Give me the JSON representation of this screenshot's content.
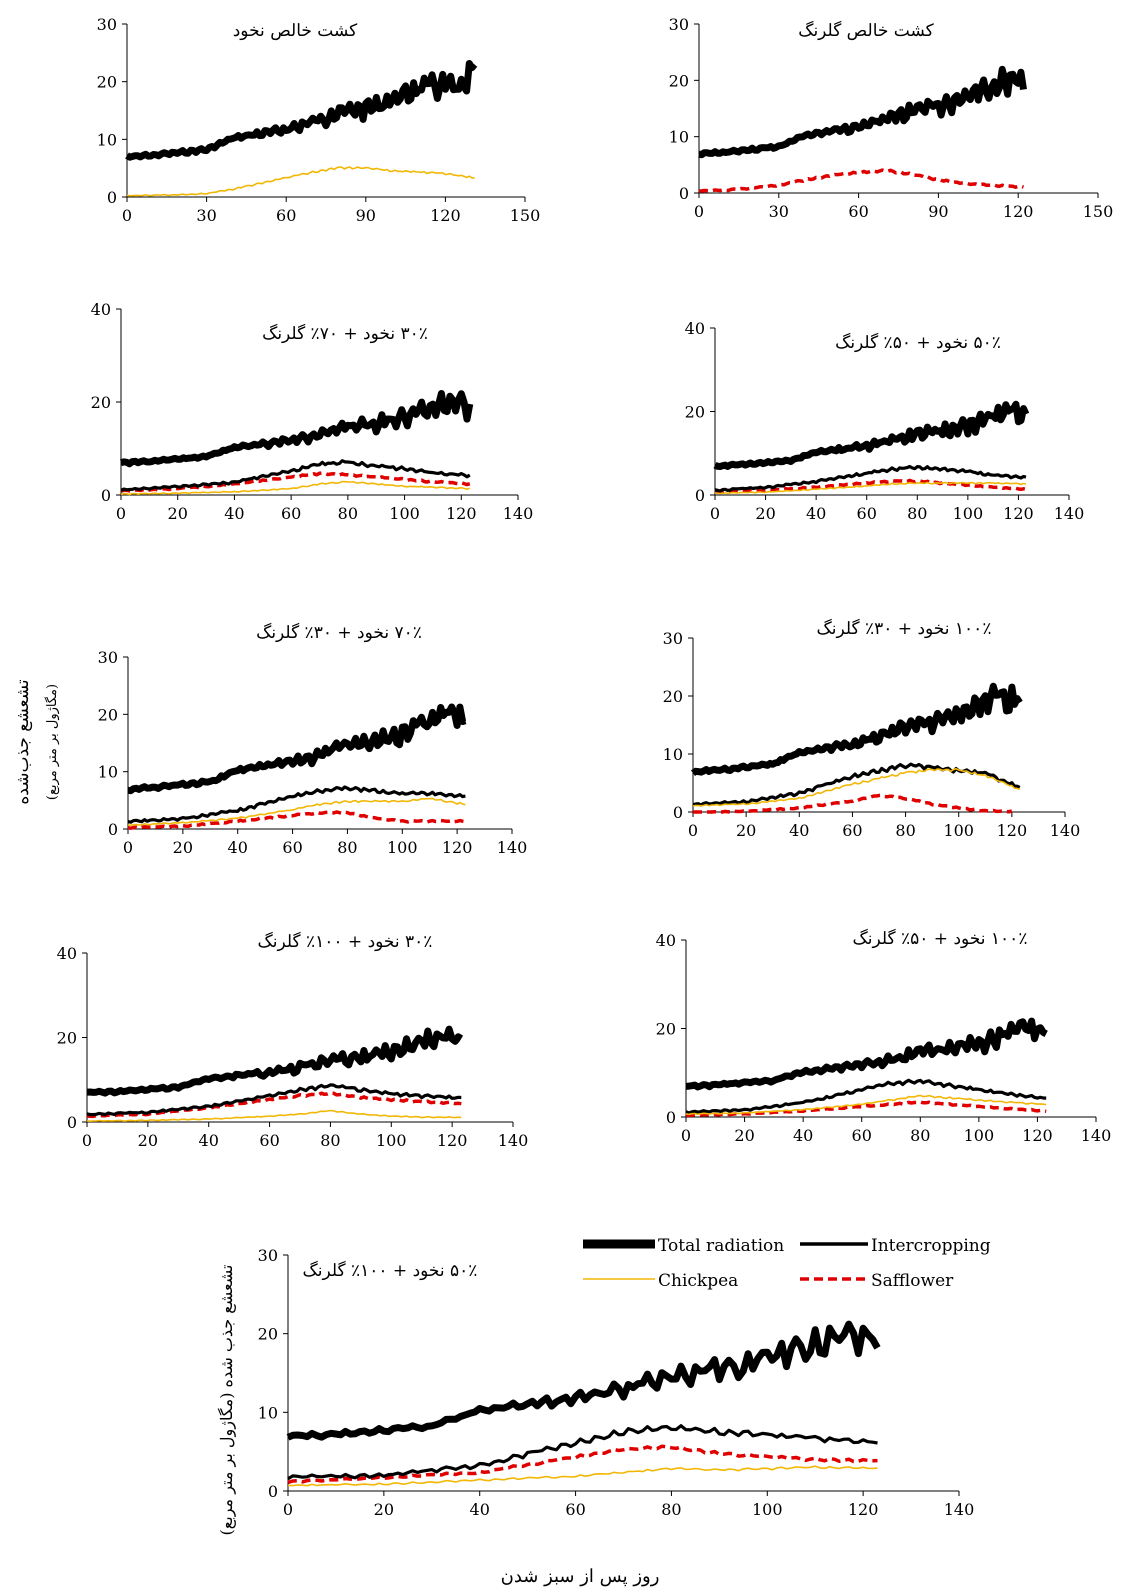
{
  "figure": {
    "y_label_main": "تشعشع جذب‌شده",
    "y_label_sub": "(مگاژول بر متر مربع)",
    "y_label_bottom": "تشعشع جذب شده (مگاژول بر متر مربع)",
    "x_label": "روز پس از سبز شدن"
  },
  "legend": {
    "total": "Total radiation",
    "inter": "Intercropping",
    "chick": "Chickpea",
    "saff": "Safflower"
  },
  "colors": {
    "total": "#000000",
    "inter": "#000000",
    "chick": "#f2b705",
    "saff": "#e00000"
  },
  "chart_data": [
    {
      "type": "line",
      "title": "کشت خالص نخود",
      "xlim": [
        0,
        150
      ],
      "ylim": [
        0,
        30
      ],
      "xticks": [
        0,
        30,
        60,
        90,
        120,
        150
      ],
      "yticks": [
        0,
        10,
        20,
        30
      ],
      "x_end": 131,
      "series": [
        {
          "name": "Total radiation",
          "x": [
            0,
            10,
            20,
            30,
            40,
            50,
            60,
            70,
            80,
            90,
            100,
            110,
            120,
            125,
            131
          ],
          "y": [
            7.2,
            7.5,
            8.0,
            8.5,
            10.5,
            11.5,
            12.5,
            14.0,
            16.0,
            17.0,
            18.5,
            21.0,
            22.0,
            20.5,
            25.0
          ]
        },
        {
          "name": "Chickpea",
          "x": [
            0,
            20,
            30,
            40,
            50,
            60,
            70,
            80,
            90,
            100,
            110,
            120,
            131
          ],
          "y": [
            0.3,
            0.5,
            0.7,
            1.5,
            2.5,
            3.5,
            4.5,
            5.3,
            5.2,
            4.7,
            4.5,
            4.2,
            3.5
          ]
        }
      ]
    },
    {
      "type": "line",
      "title": "کشت خالص گلرنگ",
      "xlim": [
        0,
        150
      ],
      "ylim": [
        0,
        30
      ],
      "xticks": [
        0,
        30,
        60,
        90,
        120,
        150
      ],
      "yticks": [
        0,
        10,
        20,
        30
      ],
      "x_end": 122,
      "series": [
        {
          "name": "Total radiation",
          "x": [
            0,
            10,
            20,
            30,
            40,
            50,
            60,
            70,
            80,
            90,
            100,
            110,
            115,
            122
          ],
          "y": [
            7.2,
            7.5,
            8.0,
            8.5,
            10.5,
            11.5,
            12.5,
            14.0,
            16.0,
            17.0,
            18.5,
            21.0,
            22.5,
            21.5
          ]
        },
        {
          "name": "Safflower",
          "x": [
            0,
            10,
            20,
            30,
            40,
            50,
            60,
            70,
            80,
            90,
            100,
            110,
            122
          ],
          "y": [
            0.5,
            0.6,
            1.0,
            1.5,
            2.5,
            3.3,
            3.8,
            4.2,
            3.5,
            2.5,
            1.8,
            1.5,
            1.2
          ]
        }
      ]
    },
    {
      "type": "line",
      "title": "۳۰٪ نخود + ۷۰٪ گلرنگ",
      "xlim": [
        0,
        140
      ],
      "ylim": [
        0,
        40
      ],
      "xticks": [
        0,
        20,
        40,
        60,
        80,
        100,
        120,
        140
      ],
      "yticks": [
        0,
        20,
        40
      ],
      "x_end": 123,
      "series": [
        {
          "name": "Total radiation",
          "x": [
            0,
            10,
            20,
            30,
            40,
            50,
            60,
            70,
            80,
            90,
            100,
            110,
            115,
            123
          ],
          "y": [
            7.2,
            7.5,
            8.0,
            8.5,
            10.5,
            11.5,
            12.5,
            14.0,
            16.0,
            17.0,
            18.5,
            21.0,
            22.5,
            21.5
          ]
        },
        {
          "name": "Intercropping",
          "x": [
            0,
            20,
            40,
            60,
            70,
            80,
            90,
            100,
            110,
            123
          ],
          "y": [
            1.3,
            2.0,
            3.0,
            5.5,
            7.0,
            7.5,
            6.5,
            6.0,
            5.0,
            4.5
          ]
        },
        {
          "name": "Chickpea",
          "x": [
            0,
            20,
            40,
            60,
            70,
            80,
            90,
            100,
            110,
            123
          ],
          "y": [
            0.3,
            0.5,
            0.8,
            1.5,
            2.5,
            3.0,
            2.5,
            2.0,
            1.8,
            1.5
          ]
        },
        {
          "name": "Safflower",
          "x": [
            0,
            20,
            40,
            60,
            70,
            80,
            90,
            100,
            110,
            123
          ],
          "y": [
            1.0,
            1.5,
            2.5,
            4.0,
            4.8,
            4.5,
            4.0,
            3.5,
            3.0,
            2.5
          ]
        }
      ]
    },
    {
      "type": "line",
      "title": "۵۰٪ نخود + ۵۰٪ گلرنگ",
      "xlim": [
        0,
        140
      ],
      "ylim": [
        0,
        40
      ],
      "xticks": [
        0,
        20,
        40,
        60,
        80,
        100,
        120,
        140
      ],
      "yticks": [
        0,
        20,
        40
      ],
      "x_end": 123,
      "series": [
        {
          "name": "Total radiation",
          "x": [
            0,
            10,
            20,
            30,
            40,
            50,
            60,
            70,
            80,
            90,
            100,
            110,
            115,
            123
          ],
          "y": [
            7.2,
            7.5,
            8.0,
            8.5,
            10.5,
            11.5,
            12.5,
            14.0,
            16.0,
            17.0,
            18.5,
            21.0,
            22.5,
            21.5
          ]
        },
        {
          "name": "Intercropping",
          "x": [
            0,
            20,
            40,
            60,
            70,
            80,
            90,
            100,
            110,
            123
          ],
          "y": [
            1.3,
            2.0,
            3.5,
            5.5,
            6.5,
            7.0,
            6.5,
            6.0,
            5.0,
            4.5
          ]
        },
        {
          "name": "Chickpea",
          "x": [
            0,
            20,
            40,
            60,
            70,
            80,
            90,
            100,
            110,
            123
          ],
          "y": [
            0.5,
            0.8,
            1.5,
            2.3,
            2.8,
            3.0,
            3.0,
            3.0,
            3.0,
            2.8
          ]
        },
        {
          "name": "Safflower",
          "x": [
            0,
            20,
            40,
            60,
            70,
            80,
            90,
            100,
            110,
            123
          ],
          "y": [
            0.8,
            1.2,
            2.0,
            3.0,
            3.5,
            3.5,
            3.0,
            2.5,
            2.0,
            1.5
          ]
        }
      ]
    },
    {
      "type": "line",
      "title": "۷۰٪ نخود + ۳۰٪ گلرنگ",
      "xlim": [
        0,
        140
      ],
      "ylim": [
        0,
        30
      ],
      "xticks": [
        0,
        20,
        40,
        60,
        80,
        100,
        120,
        140
      ],
      "yticks": [
        0,
        10,
        20,
        30
      ],
      "x_end": 123,
      "series": [
        {
          "name": "Total radiation",
          "x": [
            0,
            10,
            20,
            30,
            40,
            50,
            60,
            70,
            80,
            90,
            100,
            110,
            115,
            123
          ],
          "y": [
            7.2,
            7.5,
            8.0,
            8.5,
            10.5,
            11.5,
            12.5,
            14.0,
            16.0,
            17.0,
            18.5,
            21.0,
            22.5,
            21.5
          ]
        },
        {
          "name": "Intercropping",
          "x": [
            0,
            20,
            40,
            60,
            70,
            80,
            90,
            100,
            110,
            123
          ],
          "y": [
            1.5,
            2.0,
            3.5,
            6.0,
            7.0,
            7.5,
            7.0,
            6.5,
            6.5,
            6.0
          ]
        },
        {
          "name": "Chickpea",
          "x": [
            0,
            20,
            40,
            60,
            70,
            80,
            90,
            100,
            110,
            123
          ],
          "y": [
            0.8,
            1.2,
            2.0,
            3.5,
            4.5,
            5.0,
            5.0,
            5.0,
            5.5,
            4.5
          ]
        },
        {
          "name": "Safflower",
          "x": [
            0,
            20,
            40,
            60,
            70,
            80,
            90,
            100,
            110,
            123
          ],
          "y": [
            0.3,
            0.6,
            1.5,
            2.5,
            3.0,
            3.0,
            2.0,
            1.5,
            1.5,
            1.5
          ]
        }
      ]
    },
    {
      "type": "line",
      "title": "۱۰۰٪ نخود + ۳۰٪ گلرنگ",
      "xlim": [
        0,
        140
      ],
      "ylim": [
        0,
        30
      ],
      "xticks": [
        0,
        20,
        40,
        60,
        80,
        100,
        120,
        140
      ],
      "yticks": [
        0,
        10,
        20,
        30
      ],
      "x_end": 123,
      "series": [
        {
          "name": "Total radiation",
          "x": [
            0,
            10,
            20,
            30,
            40,
            50,
            60,
            70,
            80,
            90,
            100,
            110,
            115,
            123
          ],
          "y": [
            7.2,
            7.5,
            8.0,
            8.5,
            10.5,
            11.5,
            12.5,
            14.0,
            16.0,
            17.0,
            18.5,
            21.0,
            22.5,
            21.5
          ]
        },
        {
          "name": "Intercropping",
          "x": [
            0,
            20,
            40,
            60,
            70,
            80,
            90,
            100,
            110,
            123
          ],
          "y": [
            1.5,
            2.0,
            3.5,
            6.5,
            7.5,
            8.5,
            8.0,
            7.5,
            7.0,
            4.5
          ]
        },
        {
          "name": "Chickpea",
          "x": [
            0,
            20,
            40,
            60,
            70,
            80,
            90,
            100,
            110,
            123
          ],
          "y": [
            1.2,
            1.5,
            2.5,
            5.0,
            6.0,
            7.0,
            7.5,
            7.5,
            6.5,
            4.0
          ]
        },
        {
          "name": "Safflower",
          "x": [
            0,
            20,
            40,
            60,
            70,
            80,
            90,
            100,
            110,
            120
          ],
          "y": [
            0.0,
            0.2,
            0.8,
            2.0,
            3.0,
            2.5,
            1.5,
            0.8,
            0.3,
            0.2
          ]
        }
      ]
    },
    {
      "type": "line",
      "title": "۳۰٪ نخود + ۱۰۰٪ گلرنگ",
      "xlim": [
        0,
        140
      ],
      "ylim": [
        0,
        40
      ],
      "xticks": [
        0,
        20,
        40,
        60,
        80,
        100,
        120,
        140
      ],
      "yticks": [
        0,
        20,
        40
      ],
      "x_end": 123,
      "series": [
        {
          "name": "Total radiation",
          "x": [
            0,
            10,
            20,
            30,
            40,
            50,
            60,
            70,
            80,
            90,
            100,
            110,
            115,
            123
          ],
          "y": [
            7.2,
            7.5,
            8.0,
            8.5,
            10.5,
            11.5,
            12.5,
            14.0,
            16.0,
            17.0,
            18.5,
            21.0,
            22.5,
            21.5
          ]
        },
        {
          "name": "Intercropping",
          "x": [
            0,
            20,
            40,
            60,
            70,
            80,
            90,
            100,
            110,
            123
          ],
          "y": [
            2.0,
            2.5,
            4.0,
            6.5,
            8.0,
            9.0,
            8.0,
            7.0,
            6.5,
            6.0
          ]
        },
        {
          "name": "Chickpea",
          "x": [
            0,
            20,
            40,
            60,
            70,
            80,
            90,
            100,
            110,
            123
          ],
          "y": [
            0.3,
            0.5,
            0.8,
            1.5,
            2.0,
            2.8,
            2.0,
            1.5,
            1.3,
            1.2
          ]
        },
        {
          "name": "Safflower",
          "x": [
            0,
            20,
            40,
            60,
            70,
            80,
            90,
            100,
            110,
            123
          ],
          "y": [
            1.5,
            2.0,
            3.5,
            5.5,
            6.5,
            7.0,
            6.0,
            5.5,
            5.0,
            4.5
          ]
        }
      ]
    },
    {
      "type": "line",
      "title": "۱۰۰٪ نخود + ۵۰٪ گلرنگ",
      "xlim": [
        0,
        140
      ],
      "ylim": [
        0,
        40
      ],
      "xticks": [
        0,
        20,
        40,
        60,
        80,
        100,
        120,
        140
      ],
      "yticks": [
        0,
        20,
        40
      ],
      "x_end": 123,
      "series": [
        {
          "name": "Total radiation",
          "x": [
            0,
            10,
            20,
            30,
            40,
            50,
            60,
            70,
            80,
            90,
            100,
            110,
            115,
            123
          ],
          "y": [
            7.2,
            7.5,
            8.0,
            8.5,
            10.5,
            11.5,
            12.5,
            14.0,
            16.0,
            17.0,
            18.5,
            21.0,
            22.5,
            21.5
          ]
        },
        {
          "name": "Intercropping",
          "x": [
            0,
            20,
            40,
            60,
            70,
            80,
            90,
            100,
            110,
            123
          ],
          "y": [
            1.3,
            1.8,
            3.5,
            6.5,
            8.0,
            8.5,
            7.5,
            6.5,
            5.5,
            4.5
          ]
        },
        {
          "name": "Chickpea",
          "x": [
            0,
            20,
            40,
            60,
            70,
            80,
            90,
            100,
            110,
            123
          ],
          "y": [
            0.8,
            1.0,
            1.8,
            3.0,
            4.0,
            5.0,
            4.5,
            4.0,
            3.5,
            3.0
          ]
        },
        {
          "name": "Safflower",
          "x": [
            0,
            20,
            40,
            60,
            70,
            80,
            90,
            100,
            110,
            123
          ],
          "y": [
            0.5,
            0.8,
            1.5,
            2.5,
            3.0,
            3.5,
            3.0,
            2.5,
            2.0,
            1.5
          ]
        }
      ]
    },
    {
      "type": "line",
      "title": "۵۰٪ نخود + ۱۰۰٪ گلرنگ",
      "xlim": [
        0,
        140
      ],
      "ylim": [
        0,
        30
      ],
      "xticks": [
        0,
        20,
        40,
        60,
        80,
        100,
        120,
        140
      ],
      "yticks": [
        0,
        10,
        20,
        30
      ],
      "x_end": 123,
      "series": [
        {
          "name": "Total radiation",
          "x": [
            0,
            10,
            20,
            30,
            40,
            50,
            60,
            70,
            80,
            90,
            100,
            110,
            115,
            123
          ],
          "y": [
            7.2,
            7.5,
            8.0,
            8.5,
            10.5,
            11.5,
            12.5,
            14.0,
            16.0,
            17.0,
            18.5,
            21.0,
            22.5,
            21.5
          ]
        },
        {
          "name": "Intercropping",
          "x": [
            0,
            20,
            40,
            60,
            70,
            80,
            90,
            100,
            110,
            123
          ],
          "y": [
            2.0,
            2.2,
            3.5,
            6.5,
            8.0,
            8.5,
            8.0,
            7.5,
            7.0,
            6.5
          ]
        },
        {
          "name": "Chickpea",
          "x": [
            0,
            20,
            40,
            60,
            70,
            80,
            90,
            100,
            110,
            123
          ],
          "y": [
            0.8,
            1.0,
            1.5,
            2.0,
            2.5,
            3.0,
            2.8,
            3.0,
            3.2,
            3.0
          ]
        },
        {
          "name": "Safflower",
          "x": [
            0,
            20,
            40,
            60,
            70,
            80,
            90,
            100,
            110,
            123
          ],
          "y": [
            1.3,
            1.8,
            2.5,
            4.5,
            5.5,
            5.8,
            5.0,
            4.5,
            4.2,
            4.0
          ]
        }
      ]
    }
  ]
}
